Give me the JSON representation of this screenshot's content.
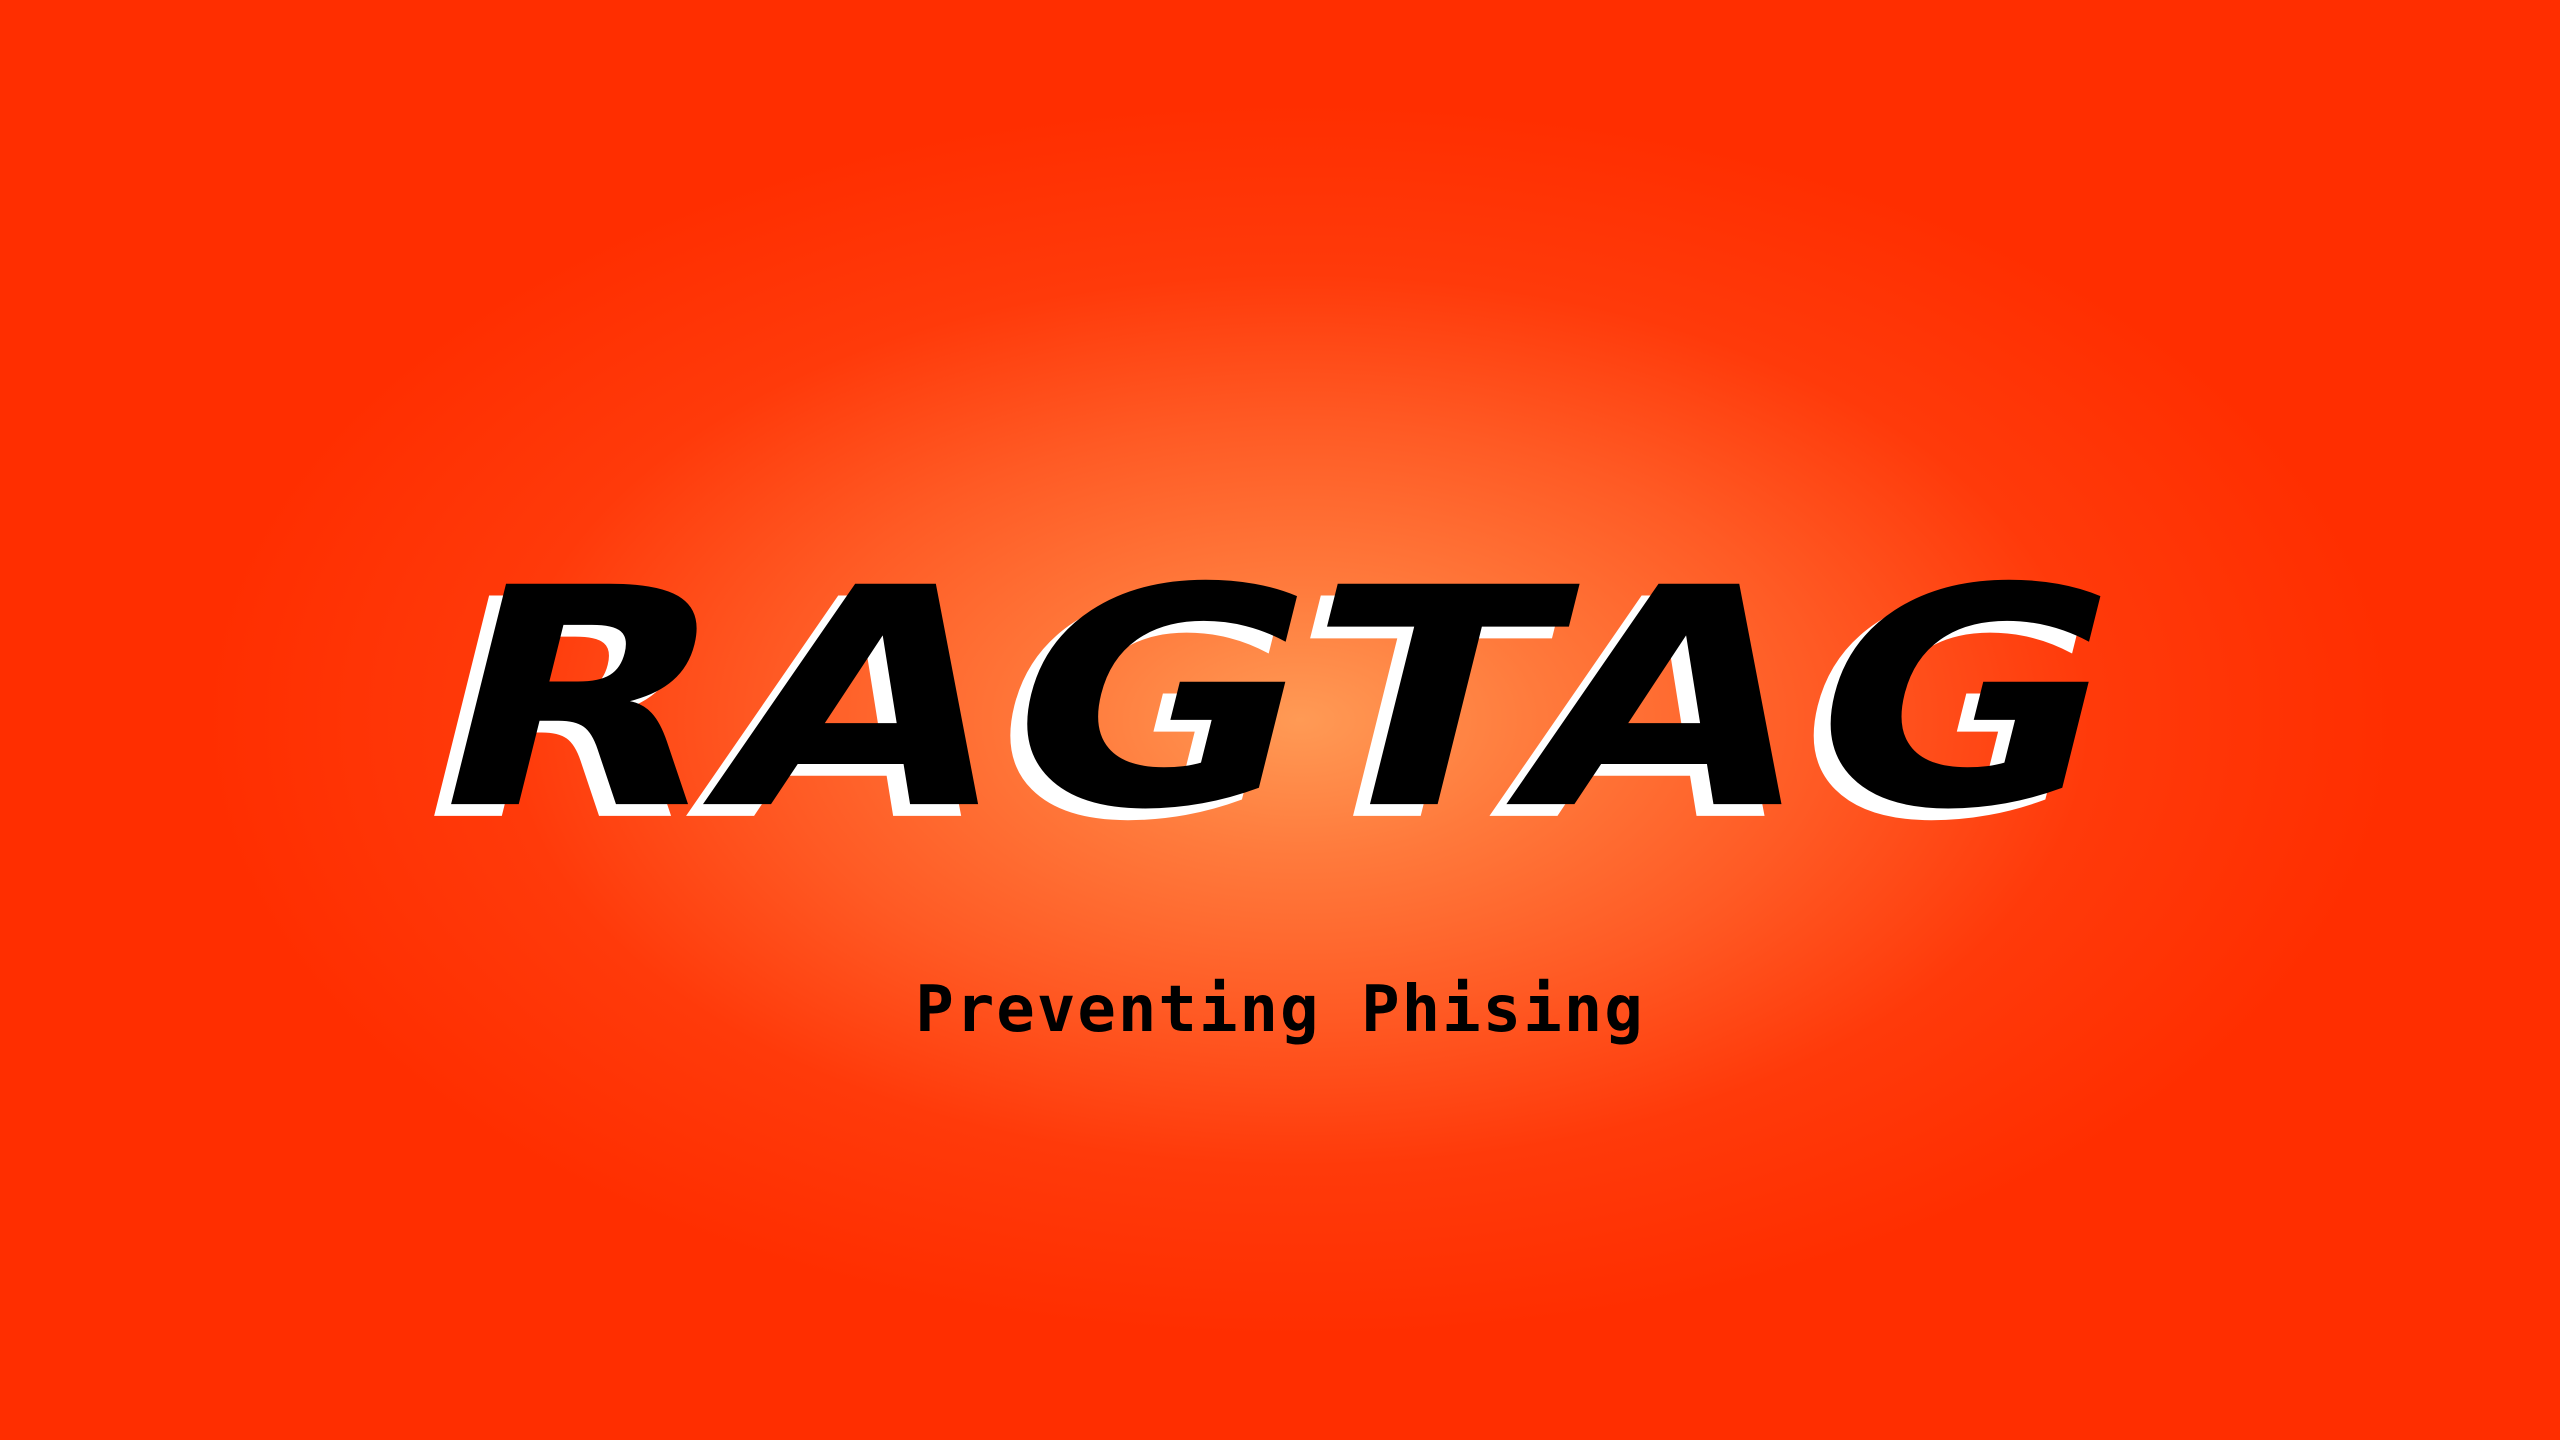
{
  "logo": {
    "text": "RAGTAG"
  },
  "tagline": {
    "text": "Preventing Phising"
  },
  "colors": {
    "background_center": "#ff9a55",
    "background_edge": "#ff2e00",
    "text": "#000000",
    "shadow": "#ffffff"
  }
}
